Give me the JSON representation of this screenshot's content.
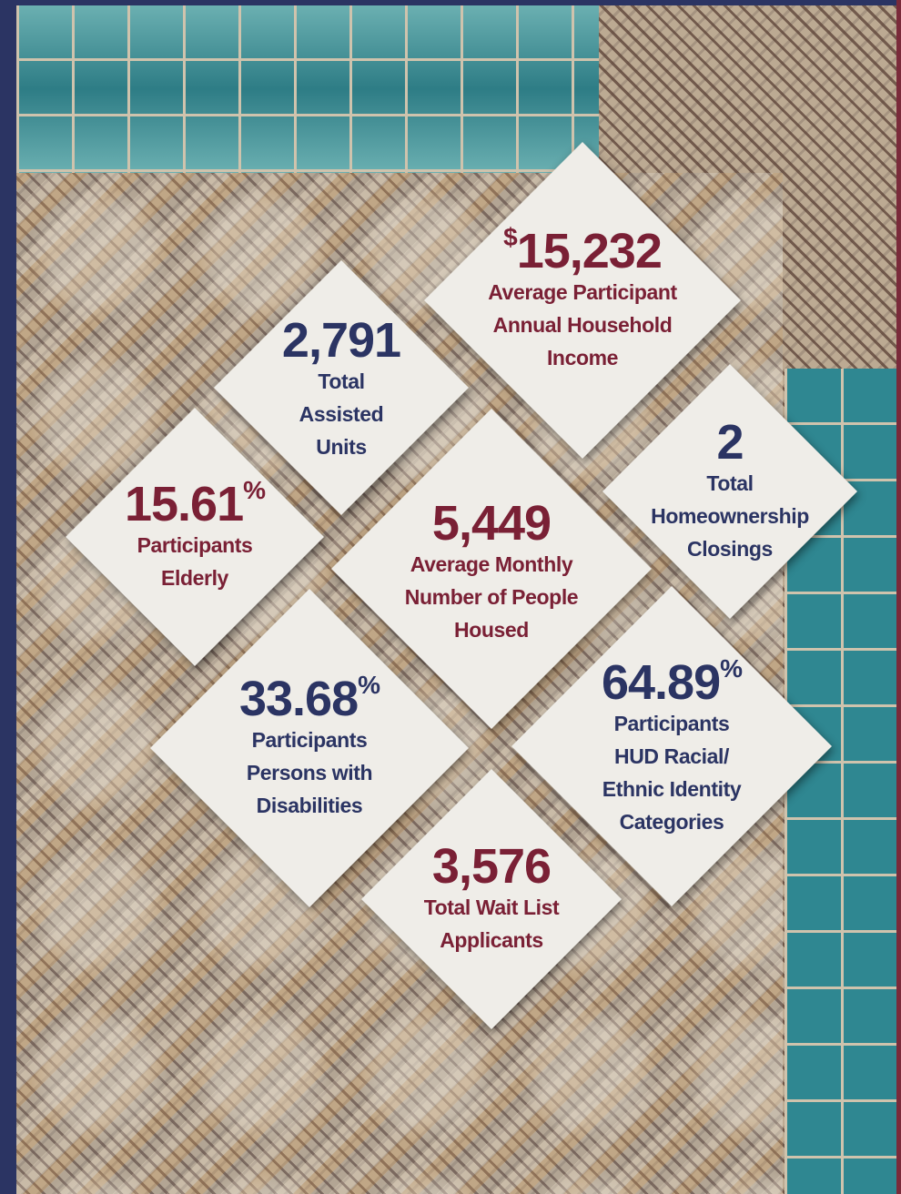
{
  "stats": [
    {
      "value": "15,232",
      "prefix": "$",
      "label": [
        "Average Participant",
        "Annual Household",
        "Income"
      ]
    },
    {
      "value": "2,791",
      "label": [
        "Total",
        "Assisted",
        "Units"
      ]
    },
    {
      "value": "2",
      "label": [
        "Total",
        "Homeownership",
        "Closings"
      ]
    },
    {
      "value": "15.61",
      "suffix": "%",
      "label": [
        "Participants",
        "Elderly"
      ]
    },
    {
      "value": "5,449",
      "label": [
        "Average Monthly",
        "Number of People",
        "Housed"
      ]
    },
    {
      "value": "33.68",
      "suffix": "%",
      "label": [
        "Participants",
        "Persons with",
        "Disabilities"
      ]
    },
    {
      "value": "64.89",
      "suffix": "%",
      "label": [
        "Participants",
        "HUD Racial/",
        "Ethnic Identity",
        "Categories"
      ]
    },
    {
      "value": "3,576",
      "label": [
        "Total Wait List",
        "Applicants"
      ]
    }
  ]
}
